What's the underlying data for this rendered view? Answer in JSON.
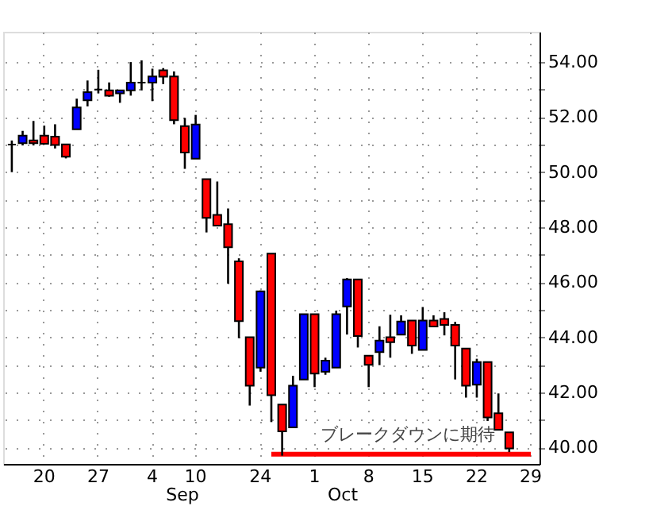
{
  "chart_data": {
    "type": "candlestick",
    "categories": [
      null,
      null,
      null,
      "20",
      null,
      null,
      null,
      null,
      "27",
      null,
      null,
      null,
      null,
      "4",
      null,
      null,
      null,
      "10",
      null,
      null,
      null,
      null,
      null,
      "24",
      null,
      null,
      null,
      null,
      "1",
      null,
      null,
      null,
      null,
      "8",
      null,
      null,
      null,
      null,
      "15",
      null,
      null,
      null,
      null,
      "22",
      null,
      null,
      null,
      null,
      "29"
    ],
    "ohlc": [
      [
        51.0,
        51.15,
        50.0,
        51.0
      ],
      [
        51.05,
        51.5,
        50.97,
        51.33
      ],
      [
        51.15,
        51.86,
        50.97,
        51.05
      ],
      [
        51.33,
        51.69,
        51.0,
        51.03
      ],
      [
        51.29,
        51.74,
        50.86,
        50.99
      ],
      [
        51.01,
        51.01,
        50.5,
        50.56
      ],
      [
        51.56,
        52.67,
        51.56,
        52.35
      ],
      [
        52.61,
        53.33,
        52.39,
        52.91
      ],
      [
        53.0,
        53.72,
        52.86,
        53.0
      ],
      [
        52.97,
        53.26,
        52.74,
        52.78
      ],
      [
        52.86,
        52.97,
        52.52,
        52.97
      ],
      [
        52.97,
        54.0,
        52.78,
        53.25
      ],
      [
        53.25,
        54.06,
        52.97,
        53.25
      ],
      [
        53.25,
        53.76,
        52.58,
        53.48
      ],
      [
        53.7,
        53.78,
        53.2,
        53.47
      ],
      [
        53.48,
        53.66,
        51.74,
        51.89
      ],
      [
        51.67,
        51.97,
        50.12,
        50.71
      ],
      [
        50.49,
        52.08,
        50.49,
        51.73
      ],
      [
        49.75,
        49.75,
        47.81,
        48.34
      ],
      [
        48.45,
        49.66,
        48.06,
        48.06
      ],
      [
        48.11,
        48.68,
        45.95,
        47.27
      ],
      [
        46.76,
        46.87,
        43.97,
        44.59
      ],
      [
        44.0,
        44.0,
        41.52,
        42.24
      ],
      [
        42.9,
        45.7,
        42.75,
        45.67
      ],
      [
        47.04,
        47.04,
        40.92,
        41.9
      ],
      [
        41.56,
        41.56,
        39.7,
        40.58
      ],
      [
        40.73,
        42.6,
        40.73,
        42.24
      ],
      [
        42.47,
        44.84,
        42.47,
        44.84
      ],
      [
        44.84,
        44.84,
        42.19,
        42.68
      ],
      [
        42.75,
        43.26,
        42.64,
        43.15
      ],
      [
        42.9,
        44.97,
        42.9,
        44.84
      ],
      [
        45.12,
        46.15,
        44.1,
        46.1
      ],
      [
        46.1,
        46.1,
        43.63,
        44.05
      ],
      [
        43.33,
        43.33,
        42.19,
        43.0
      ],
      [
        43.46,
        44.4,
        42.99,
        43.88
      ],
      [
        44.0,
        44.82,
        43.26,
        43.82
      ],
      [
        44.1,
        44.8,
        44.1,
        44.57
      ],
      [
        44.61,
        44.61,
        43.4,
        43.7
      ],
      [
        43.54,
        45.1,
        43.54,
        44.61
      ],
      [
        44.61,
        44.8,
        44.39,
        44.39
      ],
      [
        44.67,
        44.91,
        44.07,
        44.45
      ],
      [
        44.45,
        44.56,
        42.47,
        43.7
      ],
      [
        43.59,
        43.59,
        41.81,
        42.24
      ],
      [
        42.28,
        43.22,
        41.81,
        43.1
      ],
      [
        43.1,
        43.1,
        40.96,
        41.09
      ],
      [
        41.24,
        41.96,
        40.64,
        40.64
      ],
      [
        40.55,
        40.55,
        39.83,
        39.96
      ],
      null,
      null
    ],
    "colors": [
      "#000000",
      "#0000ff",
      "#ff0000",
      "#ff0000",
      "#ff0000",
      "#ff0000",
      "#0000ff",
      "#0000ff",
      "#000000",
      "#ff0000",
      "#0000ff",
      "#0000ff",
      "#000000",
      "#0000ff",
      "#ff0000",
      "#ff0000",
      "#ff0000",
      "#0000ff",
      "#ff0000",
      "#ff0000",
      "#ff0000",
      "#ff0000",
      "#ff0000",
      "#0000ff",
      "#ff0000",
      "#ff0000",
      "#0000ff",
      "#0000ff",
      "#ff0000",
      "#0000ff",
      "#0000ff",
      "#0000ff",
      "#ff0000",
      "#ff0000",
      "#0000ff",
      "#ff0000",
      "#0000ff",
      "#ff0000",
      "#0000ff",
      "#ff0000",
      "#ff0000",
      "#ff0000",
      "#ff0000",
      "#0000ff",
      "#ff0000",
      "#ff0000",
      "#ff0000",
      null,
      null
    ],
    "series": [
      {
        "type": "line",
        "color": "#ff0000",
        "values": [
          null,
          null,
          null,
          null,
          null,
          null,
          null,
          null,
          null,
          null,
          null,
          null,
          null,
          null,
          null,
          null,
          null,
          null,
          null,
          null,
          null,
          null,
          null,
          null,
          39.75,
          39.75,
          39.75,
          39.75,
          39.75,
          39.75,
          39.75,
          39.75,
          39.75,
          39.75,
          39.75,
          39.75,
          39.75,
          39.75,
          39.75,
          39.75,
          39.75,
          39.75,
          39.75,
          39.75,
          39.75,
          39.75,
          39.75,
          39.75,
          39.75
        ]
      }
    ],
    "annotations": [
      "ブレークダウンに期待",
      "Sep",
      "Oct"
    ],
    "ylim": [
      39.4,
      55.1
    ],
    "yticks": [
      {
        "value": 40,
        "label": "40.00"
      },
      {
        "value": 41,
        "label": null
      },
      {
        "value": 42,
        "label": "42.00"
      },
      {
        "value": 43,
        "label": null
      },
      {
        "value": 44,
        "label": "44.00"
      },
      {
        "value": 45,
        "label": null
      },
      {
        "value": 46,
        "label": "46.00"
      },
      {
        "value": 47,
        "label": null
      },
      {
        "value": 48,
        "label": "48.00"
      },
      {
        "value": 49,
        "label": null
      },
      {
        "value": 50,
        "label": "50.00"
      },
      {
        "value": 51,
        "label": null
      },
      {
        "value": 52,
        "label": "52.00"
      },
      {
        "value": 53,
        "label": null
      },
      {
        "value": 54,
        "label": "54.00"
      }
    ],
    "grid": true
  }
}
